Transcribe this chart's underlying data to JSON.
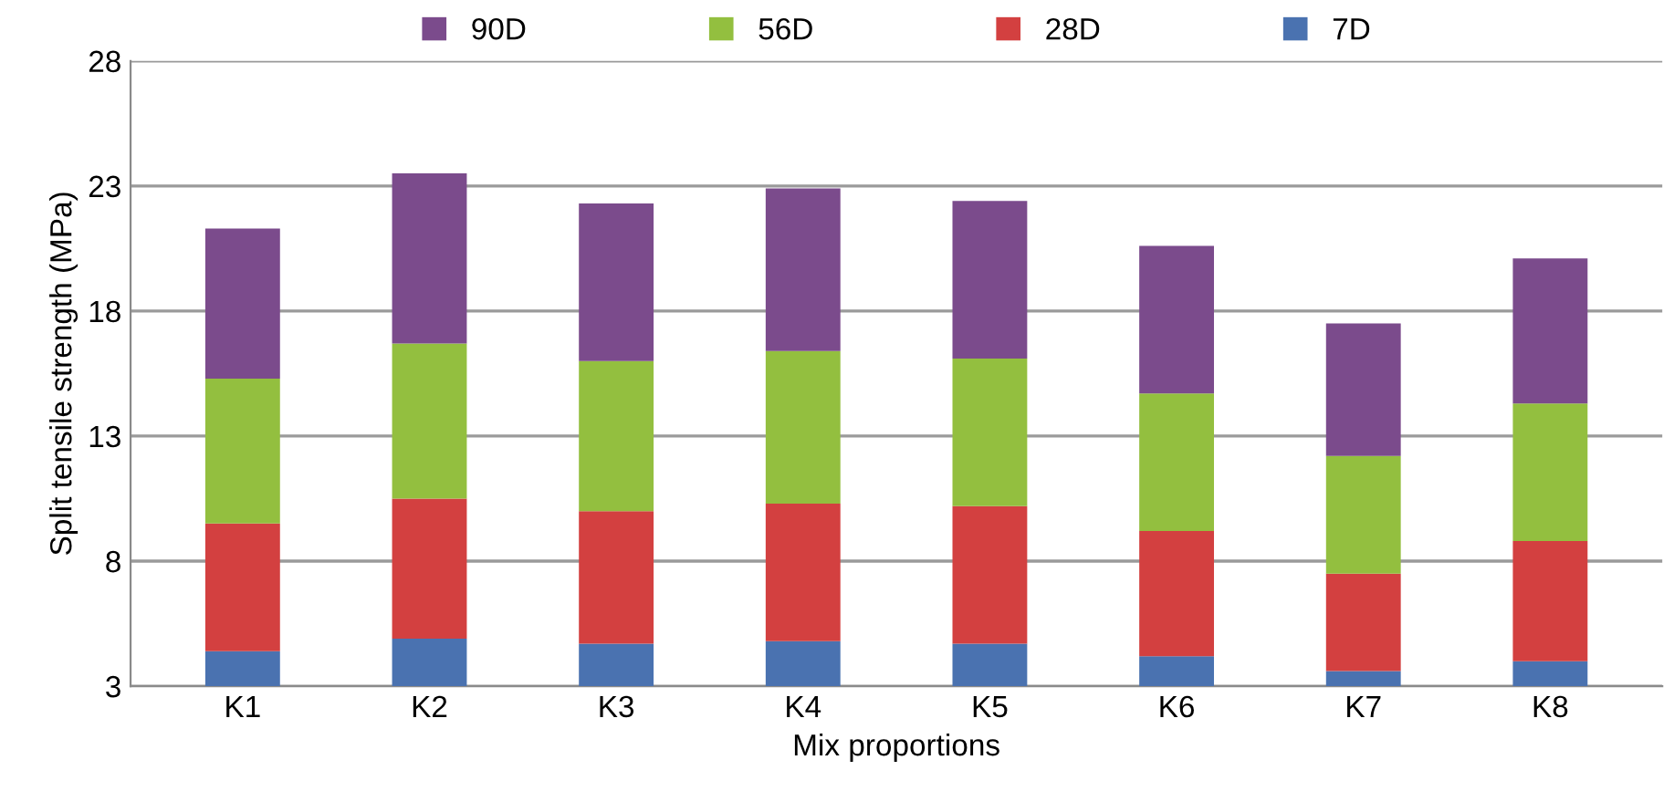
{
  "chart_data": {
    "type": "bar",
    "stacked": true,
    "xlabel": "Mix proportions",
    "ylabel": "Split tensile strength (MPa)",
    "categories": [
      "K1",
      "K2",
      "K3",
      "K4",
      "K5",
      "K6",
      "K7",
      "K8"
    ],
    "series": [
      {
        "name": "7D",
        "color": "#4a72b0",
        "values": [
          4.4,
          4.9,
          4.7,
          4.8,
          4.7,
          4.2,
          3.6,
          4.0
        ]
      },
      {
        "name": "28D",
        "color": "#d34040",
        "values": [
          5.1,
          5.6,
          5.3,
          5.5,
          5.5,
          5.0,
          3.9,
          4.8
        ]
      },
      {
        "name": "56D",
        "color": "#93bf3f",
        "values": [
          5.8,
          6.2,
          6.0,
          6.1,
          5.9,
          5.5,
          4.7,
          5.5
        ]
      },
      {
        "name": "90D",
        "color": "#7b4b8c",
        "values": [
          6.0,
          6.8,
          6.3,
          6.5,
          6.3,
          5.9,
          5.3,
          5.8
        ]
      }
    ],
    "ylim": [
      3,
      28
    ],
    "yticks": [
      3,
      8,
      13,
      18,
      23,
      28
    ],
    "grid": "y",
    "legend": "top"
  }
}
